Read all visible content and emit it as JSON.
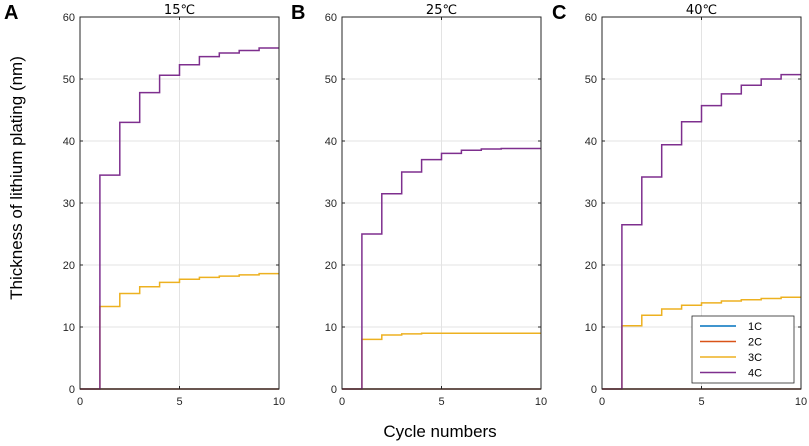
{
  "chart_data": {
    "type": "line",
    "ylabel": "Thickness of lithium plating (nm)",
    "xlabel": "Cycle numbers",
    "xlim": [
      0,
      10
    ],
    "ylim": [
      0,
      60
    ],
    "xticks": [
      0,
      5,
      10
    ],
    "yticks": [
      0,
      10,
      20,
      30,
      40,
      50,
      60
    ],
    "grid": true,
    "legend": {
      "placement": "bottom-right of panel C",
      "entries": [
        "1C",
        "2C",
        "3C",
        "4C"
      ]
    },
    "colors": {
      "1C": "#0072BD",
      "2C": "#D95319",
      "3C": "#EDB120",
      "4C": "#7E2F8E"
    },
    "step": "post",
    "panels": [
      {
        "label": "A",
        "title": "15℃",
        "x": [
          0,
          1,
          2,
          3,
          4,
          5,
          6,
          7,
          8,
          9,
          10
        ],
        "series": [
          {
            "name": "1C",
            "values": [
              0,
              0,
              0,
              0,
              0,
              0,
              0,
              0,
              0,
              0,
              0
            ]
          },
          {
            "name": "2C",
            "values": [
              0,
              0,
              0,
              0,
              0,
              0,
              0,
              0,
              0,
              0,
              0
            ]
          },
          {
            "name": "3C",
            "values": [
              0,
              13.3,
              15.4,
              16.5,
              17.2,
              17.7,
              18.0,
              18.2,
              18.4,
              18.6,
              18.6
            ]
          },
          {
            "name": "4C",
            "values": [
              0,
              34.5,
              43.0,
              47.8,
              50.6,
              52.3,
              53.6,
              54.2,
              54.6,
              55.0,
              55.0
            ]
          }
        ]
      },
      {
        "label": "B",
        "title": "25℃",
        "x": [
          0,
          1,
          2,
          3,
          4,
          5,
          6,
          7,
          8,
          9,
          10
        ],
        "series": [
          {
            "name": "1C",
            "values": [
              0,
              0,
              0,
              0,
              0,
              0,
              0,
              0,
              0,
              0,
              0
            ]
          },
          {
            "name": "2C",
            "values": [
              0,
              0,
              0,
              0,
              0,
              0,
              0,
              0,
              0,
              0,
              0
            ]
          },
          {
            "name": "3C",
            "values": [
              0,
              8.0,
              8.7,
              8.9,
              9.0,
              9.0,
              9.0,
              9.0,
              9.0,
              9.0,
              9.0
            ]
          },
          {
            "name": "4C",
            "values": [
              0,
              25.0,
              31.5,
              35.0,
              37.0,
              38.0,
              38.5,
              38.7,
              38.8,
              38.8,
              38.8
            ]
          }
        ]
      },
      {
        "label": "C",
        "title": "40℃",
        "x": [
          0,
          1,
          2,
          3,
          4,
          5,
          6,
          7,
          8,
          9,
          10
        ],
        "series": [
          {
            "name": "1C",
            "values": [
              0,
              0,
              0,
              0,
              0,
              0,
              0,
              0,
              0,
              0,
              0
            ]
          },
          {
            "name": "2C",
            "values": [
              0,
              0,
              0,
              0,
              0,
              0,
              0,
              0,
              0,
              0,
              0
            ]
          },
          {
            "name": "3C",
            "values": [
              0,
              10.2,
              11.9,
              12.9,
              13.5,
              13.9,
              14.2,
              14.4,
              14.6,
              14.8,
              14.8
            ]
          },
          {
            "name": "4C",
            "values": [
              0,
              26.5,
              34.2,
              39.4,
              43.1,
              45.7,
              47.6,
              49.0,
              50.0,
              50.7,
              50.7
            ]
          }
        ]
      }
    ]
  }
}
